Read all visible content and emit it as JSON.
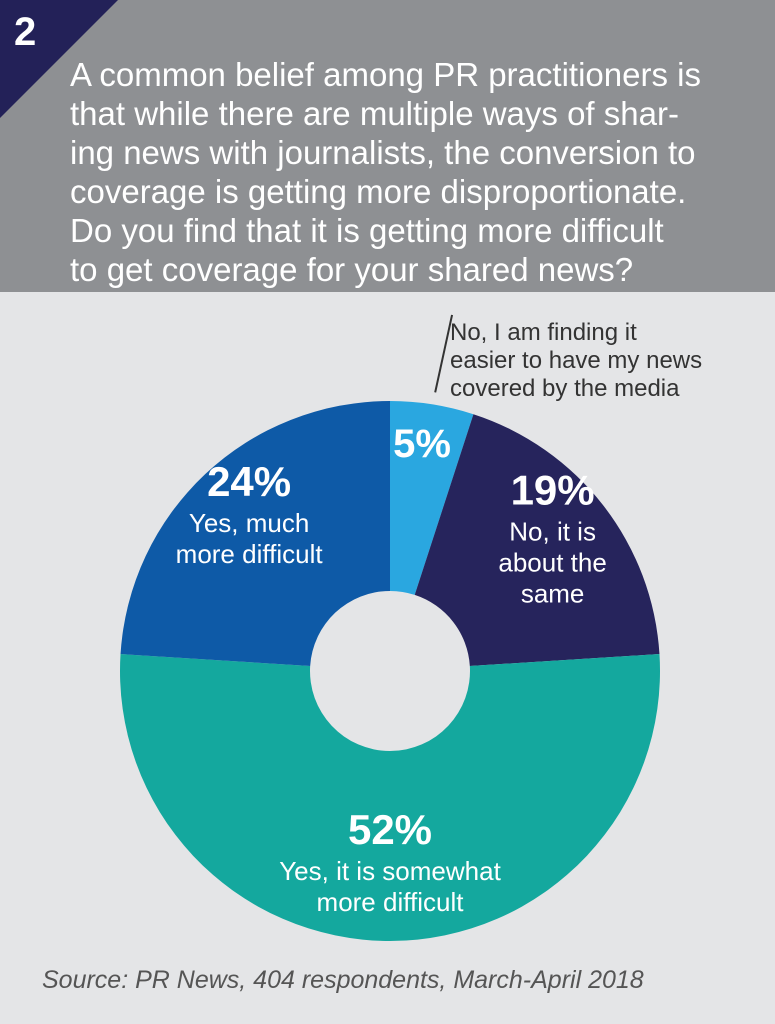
{
  "header": {
    "number": "2",
    "question_lines": [
      "A common belief among PR practitioners is",
      "that while there are multiple ways of shar-",
      "ing news with journalists, the conversion to",
      "coverage is getting more disproportionate.",
      "Do you find that it is getting more difficult",
      "to get coverage for your shared news?"
    ]
  },
  "colors": {
    "header_bg": "#8e9093",
    "badge": "#232158",
    "background": "#e4e5e7"
  },
  "chart_data": {
    "type": "pie",
    "donut": true,
    "slices": [
      {
        "value": 5,
        "label": "5%",
        "name_lines": [
          "No, I am finding it",
          "easier to have my news",
          "covered by the media"
        ],
        "color": "#2aa7e0"
      },
      {
        "value": 19,
        "label": "19%",
        "name_lines": [
          "No, it is",
          "about the",
          "same"
        ],
        "color": "#26245c"
      },
      {
        "value": 52,
        "label": "52%",
        "name_lines": [
          "Yes, it is somewhat",
          "more difficult"
        ],
        "color": "#14a89e"
      },
      {
        "value": 24,
        "label": "24%",
        "name_lines": [
          "Yes, much",
          "more difficult"
        ],
        "color": "#0e5aa7"
      }
    ]
  },
  "footer": {
    "source": "Source: PR News, 404 respondents, March-April 2018"
  }
}
